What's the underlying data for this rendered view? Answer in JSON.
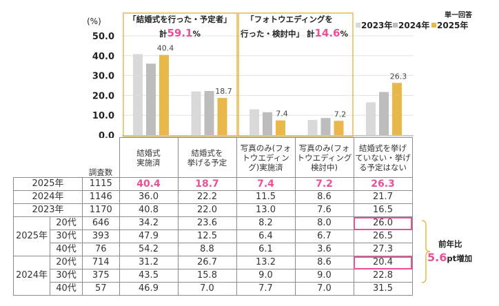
{
  "chart_data": {
    "type": "bar",
    "title": "",
    "note": "単一回答",
    "ylabel": "(%)",
    "ylim": [
      0,
      50
    ],
    "yticks": [
      "0.0",
      "10.0",
      "20.0",
      "30.0",
      "40.0",
      "50.0"
    ],
    "grid": true,
    "legend_position": "top-right",
    "categories": [
      "結婚式実施済",
      "結婚式を挙げる予定",
      "写真のみ(フォトウエディング)実施済",
      "写真のみ(フォトウエディング検討中)",
      "結婚式を挙げていない・挙げる予定はない"
    ],
    "series": [
      {
        "name": "2023年",
        "color": "#d9d9d9",
        "values": [
          40.8,
          22.0,
          13.0,
          7.6,
          16.5
        ]
      },
      {
        "name": "2024年",
        "color": "#bdbdbd",
        "values": [
          36.0,
          22.2,
          11.5,
          8.6,
          21.7
        ]
      },
      {
        "name": "2025年",
        "color": "#e8b84b",
        "values": [
          40.4,
          18.7,
          7.4,
          7.2,
          26.3
        ]
      }
    ],
    "data_labels": {
      "series": "2025年",
      "values": [
        "40.4",
        "18.7",
        "7.4",
        "7.2",
        "26.3"
      ]
    },
    "highlight_groups": [
      {
        "title": "「結婚式を行った・予定者」",
        "prefix": "計",
        "value": "59.1",
        "suffix": "%",
        "categories": [
          0,
          1
        ]
      },
      {
        "title_line1": "「フォトウエディングを",
        "title_line2": "行った・検討中」",
        "prefix": "計",
        "value": "14.6",
        "suffix": "%",
        "categories": [
          2,
          3
        ]
      }
    ]
  },
  "table": {
    "n_header": "調査数",
    "column_headers": [
      [
        "結婚式",
        "実施済"
      ],
      [
        "結婚式を",
        "挙げる予定"
      ],
      [
        "写真のみ(フォ",
        "トウエディン",
        "グ)実施済"
      ],
      [
        "写真のみ(フォ",
        "トウエディング",
        "検討中)"
      ],
      [
        "結婚式を挙げ",
        "ていない・挙げ",
        "る予定はない"
      ]
    ],
    "total_rows": [
      {
        "label": "2025年",
        "n": "1115",
        "values": [
          "40.4",
          "18.7",
          "7.4",
          "7.2",
          "26.3"
        ]
      },
      {
        "label": "2024年",
        "n": "1146",
        "values": [
          "36.0",
          "22.2",
          "11.5",
          "8.6",
          "21.7"
        ]
      },
      {
        "label": "2023年",
        "n": "1170",
        "values": [
          "40.8",
          "22.0",
          "13.0",
          "7.6",
          "16.5"
        ]
      }
    ],
    "age_groups": [
      {
        "label": "2025年",
        "rows": [
          {
            "age": "20代",
            "n": "646",
            "values": [
              "34.2",
              "23.6",
              "8.2",
              "8.0",
              "26.0"
            ]
          },
          {
            "age": "30代",
            "n": "393",
            "values": [
              "47.9",
              "12.5",
              "6.4",
              "6.7",
              "26.5"
            ]
          },
          {
            "age": "40代",
            "n": "76",
            "values": [
              "54.2",
              "8.8",
              "6.1",
              "3.6",
              "27.3"
            ]
          }
        ]
      },
      {
        "label": "2024年",
        "rows": [
          {
            "age": "20代",
            "n": "714",
            "values": [
              "31.2",
              "26.7",
              "13.2",
              "8.6",
              "20.4"
            ]
          },
          {
            "age": "30代",
            "n": "375",
            "values": [
              "43.5",
              "15.8",
              "9.0",
              "9.0",
              "22.8"
            ]
          },
          {
            "age": "40代",
            "n": "57",
            "values": [
              "46.9",
              "7.0",
              "7.7",
              "7.0",
              "31.5"
            ]
          }
        ]
      }
    ]
  },
  "callout": {
    "line1": "前年比",
    "value": "5.6",
    "suffix": "pt増加",
    "highlight_color": "#ec4f97",
    "bracket_color": "#e8b84b"
  }
}
